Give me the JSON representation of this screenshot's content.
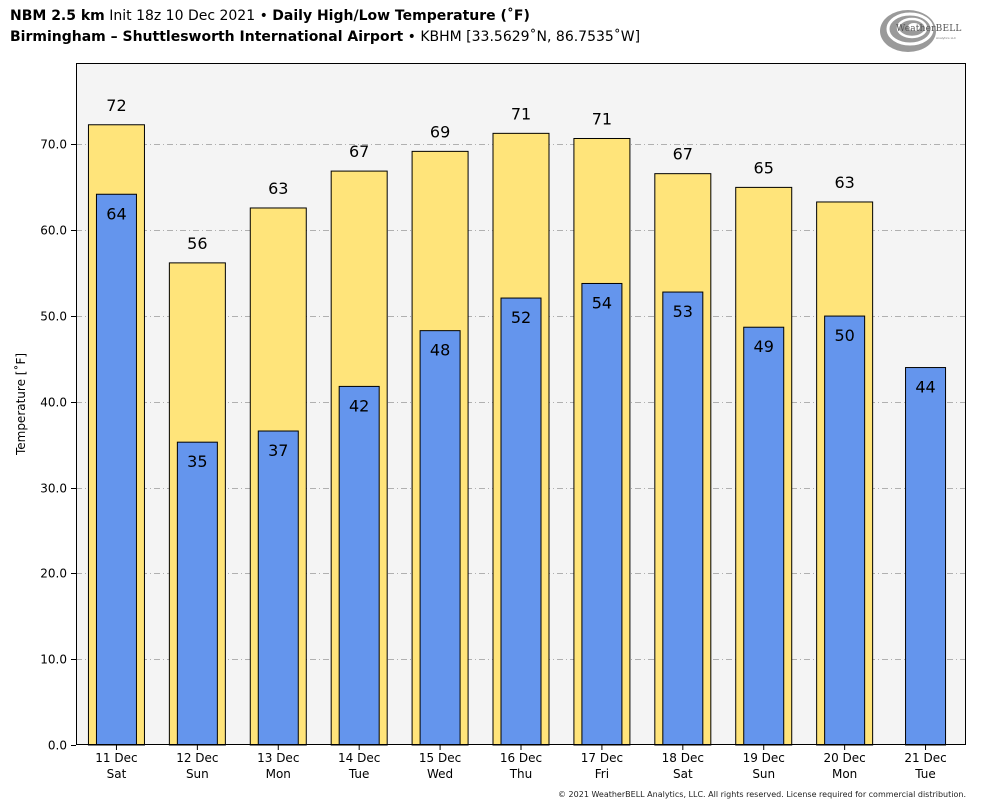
{
  "header": {
    "model": "NBM 2.5 km",
    "init": "Init 18z 10 Dec 2021",
    "sep1": "•",
    "product": "Daily High/Low Temperature (˚F)",
    "station": "Birmingham – Shuttlesworth International Airport",
    "sep2": "•",
    "station_info": "KBHM [33.5629˚N, 86.7535˚W]"
  },
  "logo": {
    "text": "WeatherBELL",
    "subtext": "Analytics LLC"
  },
  "footer": "© 2021 WeatherBELL Analytics, LLC. All rights reserved. License required for commercial distribution.",
  "colors": {
    "high": "#ffe47a",
    "low": "#6495ed",
    "plot_bg": "#f4f4f4",
    "grid": "#b0b0b0"
  },
  "chart_data": {
    "type": "bar",
    "title": "Daily High/Low Temperature (˚F)",
    "ylabel": "Temperature [˚F]",
    "xlabel": "",
    "ylim": [
      0,
      79.5
    ],
    "yticks": [
      "0.0",
      "10.0",
      "20.0",
      "30.0",
      "40.0",
      "50.0",
      "60.0",
      "70.0"
    ],
    "grid": "horizontal dash-dot",
    "categories": [
      {
        "date": "11 Dec",
        "day": "Sat"
      },
      {
        "date": "12 Dec",
        "day": "Sun"
      },
      {
        "date": "13 Dec",
        "day": "Mon"
      },
      {
        "date": "14 Dec",
        "day": "Tue"
      },
      {
        "date": "15 Dec",
        "day": "Wed"
      },
      {
        "date": "16 Dec",
        "day": "Thu"
      },
      {
        "date": "17 Dec",
        "day": "Fri"
      },
      {
        "date": "18 Dec",
        "day": "Sat"
      },
      {
        "date": "19 Dec",
        "day": "Sun"
      },
      {
        "date": "20 Dec",
        "day": "Mon"
      },
      {
        "date": "21 Dec",
        "day": "Tue"
      }
    ],
    "series": [
      {
        "key": "high",
        "values": [
          72.3,
          56.2,
          62.6,
          66.9,
          69.2,
          71.3,
          70.7,
          66.6,
          65.0,
          63.3,
          null
        ],
        "labels": [
          "72",
          "56",
          "63",
          "67",
          "69",
          "71",
          "71",
          "67",
          "65",
          "63",
          ""
        ]
      },
      {
        "key": "low",
        "values": [
          64.2,
          35.3,
          36.6,
          41.8,
          48.3,
          52.1,
          53.8,
          52.8,
          48.7,
          50.0,
          44.0
        ],
        "labels": [
          "64",
          "35",
          "37",
          "42",
          "48",
          "52",
          "54",
          "53",
          "49",
          "50",
          "44"
        ]
      }
    ]
  }
}
